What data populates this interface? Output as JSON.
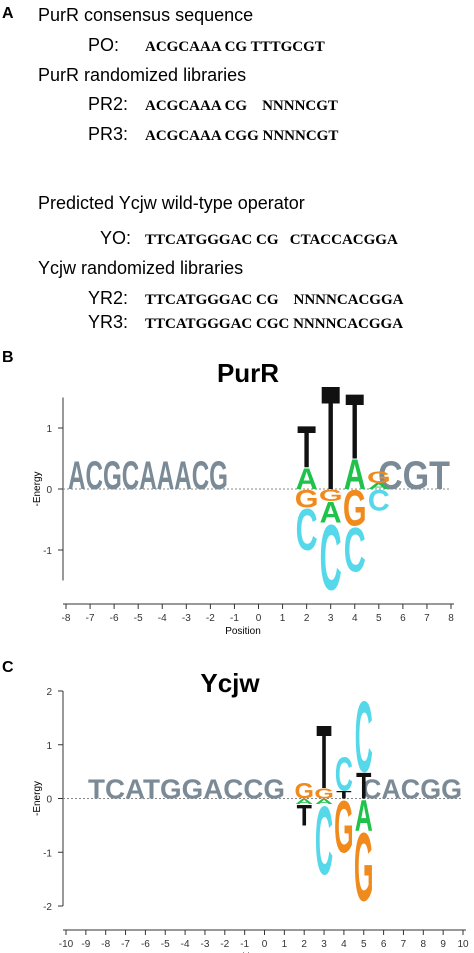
{
  "panel_a": {
    "label": "A",
    "sections": [
      {
        "title": "PurR consensus sequence",
        "rows": [
          {
            "name": "PO:",
            "sequence": "ACGCAAA CG TTTGCGT"
          }
        ]
      },
      {
        "title": "PurR randomized libraries",
        "rows": [
          {
            "name": "PR2:",
            "sequence": "ACGCAAA CG    NNNNCGT"
          },
          {
            "name": "PR3:",
            "sequence": "ACGCAAA CGG NNNNCGT"
          }
        ]
      },
      {
        "title": "Predicted Ycjw wild-type operator",
        "rows": [
          {
            "name": "YO:",
            "sequence": "TTCATGGGAC CG   CTACCACGGA"
          }
        ]
      },
      {
        "title": "Ycjw randomized libraries",
        "rows": [
          {
            "name": "YR2:",
            "sequence": "TTCATGGGAC CG    NNNNCACGGA"
          },
          {
            "name": "YR3:",
            "sequence": "TTCATGGGAC CGC NNNNCACGGA"
          }
        ]
      }
    ]
  },
  "colors": {
    "A": "#1fc24a",
    "C": "#55d8ea",
    "G": "#f08a1c",
    "T": "#111111"
  },
  "panel_b": {
    "label": "B",
    "title": "PurR",
    "ylabel": "-Energy",
    "xlabel": "Position",
    "xlim": [
      -8,
      8
    ],
    "xticks": [
      -8,
      -7,
      -6,
      -5,
      -4,
      -3,
      -2,
      -1,
      0,
      1,
      2,
      3,
      4,
      5,
      6,
      7,
      8
    ],
    "ylim": [
      -1.5,
      1.5
    ],
    "yticks": [
      -1,
      0,
      1
    ],
    "consensus_left": "ACGCAAACG",
    "consensus_right": "CGT",
    "stacks": [
      {
        "position": 2,
        "up": [
          {
            "letter": "A",
            "energy": 0.35
          },
          {
            "letter": "T",
            "energy": 0.7
          }
        ],
        "down": [
          {
            "letter": "G",
            "energy": -0.3
          },
          {
            "letter": "C",
            "energy": -0.7
          }
        ]
      },
      {
        "position": 3,
        "up": [
          {
            "letter": "T",
            "energy": 1.75
          }
        ],
        "down": [
          {
            "letter": "G",
            "energy": -0.2
          },
          {
            "letter": "A",
            "energy": -0.35
          },
          {
            "letter": "C",
            "energy": -1.1
          }
        ]
      },
      {
        "position": 4,
        "up": [
          {
            "letter": "A",
            "energy": 0.5
          },
          {
            "letter": "T",
            "energy": 1.1
          }
        ],
        "down": [
          {
            "letter": "G",
            "energy": -0.6
          },
          {
            "letter": "C",
            "energy": -0.75
          }
        ]
      },
      {
        "position": 5,
        "up": [
          {
            "letter": "A",
            "energy": 0.1
          },
          {
            "letter": "G",
            "energy": 0.2
          }
        ],
        "down": [
          {
            "letter": "C",
            "energy": -0.35
          }
        ]
      }
    ]
  },
  "panel_c": {
    "label": "C",
    "title": "Ycjw",
    "ylabel": "-Energy",
    "xlabel": "Position",
    "xlim": [
      -10,
      10
    ],
    "xticks": [
      -10,
      -9,
      -8,
      -7,
      -6,
      -5,
      -4,
      -3,
      -2,
      -1,
      0,
      1,
      2,
      3,
      4,
      5,
      6,
      7,
      8,
      9,
      10
    ],
    "ylim": [
      -2,
      2
    ],
    "yticks": [
      -2,
      -1,
      0,
      1,
      2
    ],
    "consensus_left": "TCATGGACCG",
    "consensus_right": "CACGG",
    "stacks": [
      {
        "position": 2,
        "up": [
          {
            "letter": "G",
            "energy": 0.3
          }
        ],
        "down": [
          {
            "letter": "A",
            "energy": -0.1
          },
          {
            "letter": "T",
            "energy": -0.4
          }
        ]
      },
      {
        "position": 3,
        "up": [
          {
            "letter": "G",
            "energy": 0.2
          },
          {
            "letter": "T",
            "energy": 1.2
          }
        ],
        "down": [
          {
            "letter": "A",
            "energy": -0.1
          },
          {
            "letter": "C",
            "energy": -1.3
          }
        ]
      },
      {
        "position": 4,
        "up": [
          {
            "letter": "T",
            "energy": 0.15
          },
          {
            "letter": "C",
            "energy": 0.65
          }
        ],
        "down": [
          {
            "letter": "G",
            "energy": -1.0
          }
        ]
      },
      {
        "position": 5,
        "up": [
          {
            "letter": "T",
            "energy": 0.5
          },
          {
            "letter": "C",
            "energy": 1.35
          }
        ],
        "down": [
          {
            "letter": "A",
            "energy": -0.6
          },
          {
            "letter": "G",
            "energy": -1.3
          }
        ]
      }
    ]
  }
}
